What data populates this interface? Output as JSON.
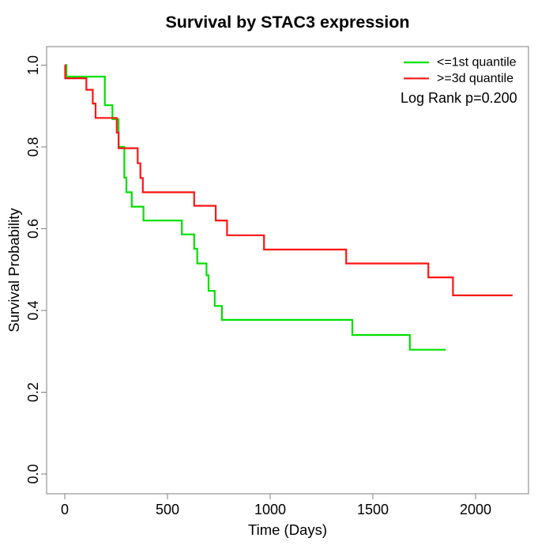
{
  "title": "Survival by STAC3 expression",
  "chart_data": {
    "type": "line",
    "subtype": "kaplan-meier-step",
    "title": "Survival by STAC3 expression",
    "xlabel": "Time (Days)",
    "ylabel": "Survival Probability",
    "xlim": [
      0,
      2200
    ],
    "ylim": [
      0.0,
      1.0
    ],
    "x_ticks": [
      0,
      500,
      1000,
      1500,
      2000
    ],
    "y_ticks": [
      0.0,
      0.2,
      0.4,
      0.6,
      0.8,
      1.0
    ],
    "grid": false,
    "legend_position": "top-right",
    "annotation": "Log Rank p=0.200",
    "colors": {
      "low_group": "#00e000",
      "high_group": "#ff1414",
      "axis": "#808080",
      "text": "#000000"
    },
    "series": [
      {
        "name": "<=1st quantile",
        "color": "#00e000",
        "points": [
          [
            0,
            1.0
          ],
          [
            8,
            0.972
          ],
          [
            195,
            0.902
          ],
          [
            232,
            0.868
          ],
          [
            262,
            0.8
          ],
          [
            290,
            0.725
          ],
          [
            300,
            0.689
          ],
          [
            326,
            0.654
          ],
          [
            383,
            0.62
          ],
          [
            570,
            0.586
          ],
          [
            630,
            0.551
          ],
          [
            645,
            0.515
          ],
          [
            690,
            0.486
          ],
          [
            700,
            0.448
          ],
          [
            730,
            0.411
          ],
          [
            765,
            0.377
          ],
          [
            1400,
            0.34
          ],
          [
            1680,
            0.304
          ],
          [
            1855,
            0.304
          ]
        ]
      },
      {
        "name": ">=3d quantile",
        "color": "#ff1414",
        "points": [
          [
            0,
            1.0
          ],
          [
            2,
            0.968
          ],
          [
            105,
            0.94
          ],
          [
            136,
            0.906
          ],
          [
            150,
            0.871
          ],
          [
            253,
            0.835
          ],
          [
            262,
            0.797
          ],
          [
            355,
            0.76
          ],
          [
            368,
            0.724
          ],
          [
            380,
            0.689
          ],
          [
            630,
            0.656
          ],
          [
            735,
            0.62
          ],
          [
            790,
            0.584
          ],
          [
            970,
            0.549
          ],
          [
            1370,
            0.515
          ],
          [
            1770,
            0.481
          ],
          [
            1890,
            0.437
          ],
          [
            2180,
            0.437
          ]
        ]
      }
    ]
  }
}
